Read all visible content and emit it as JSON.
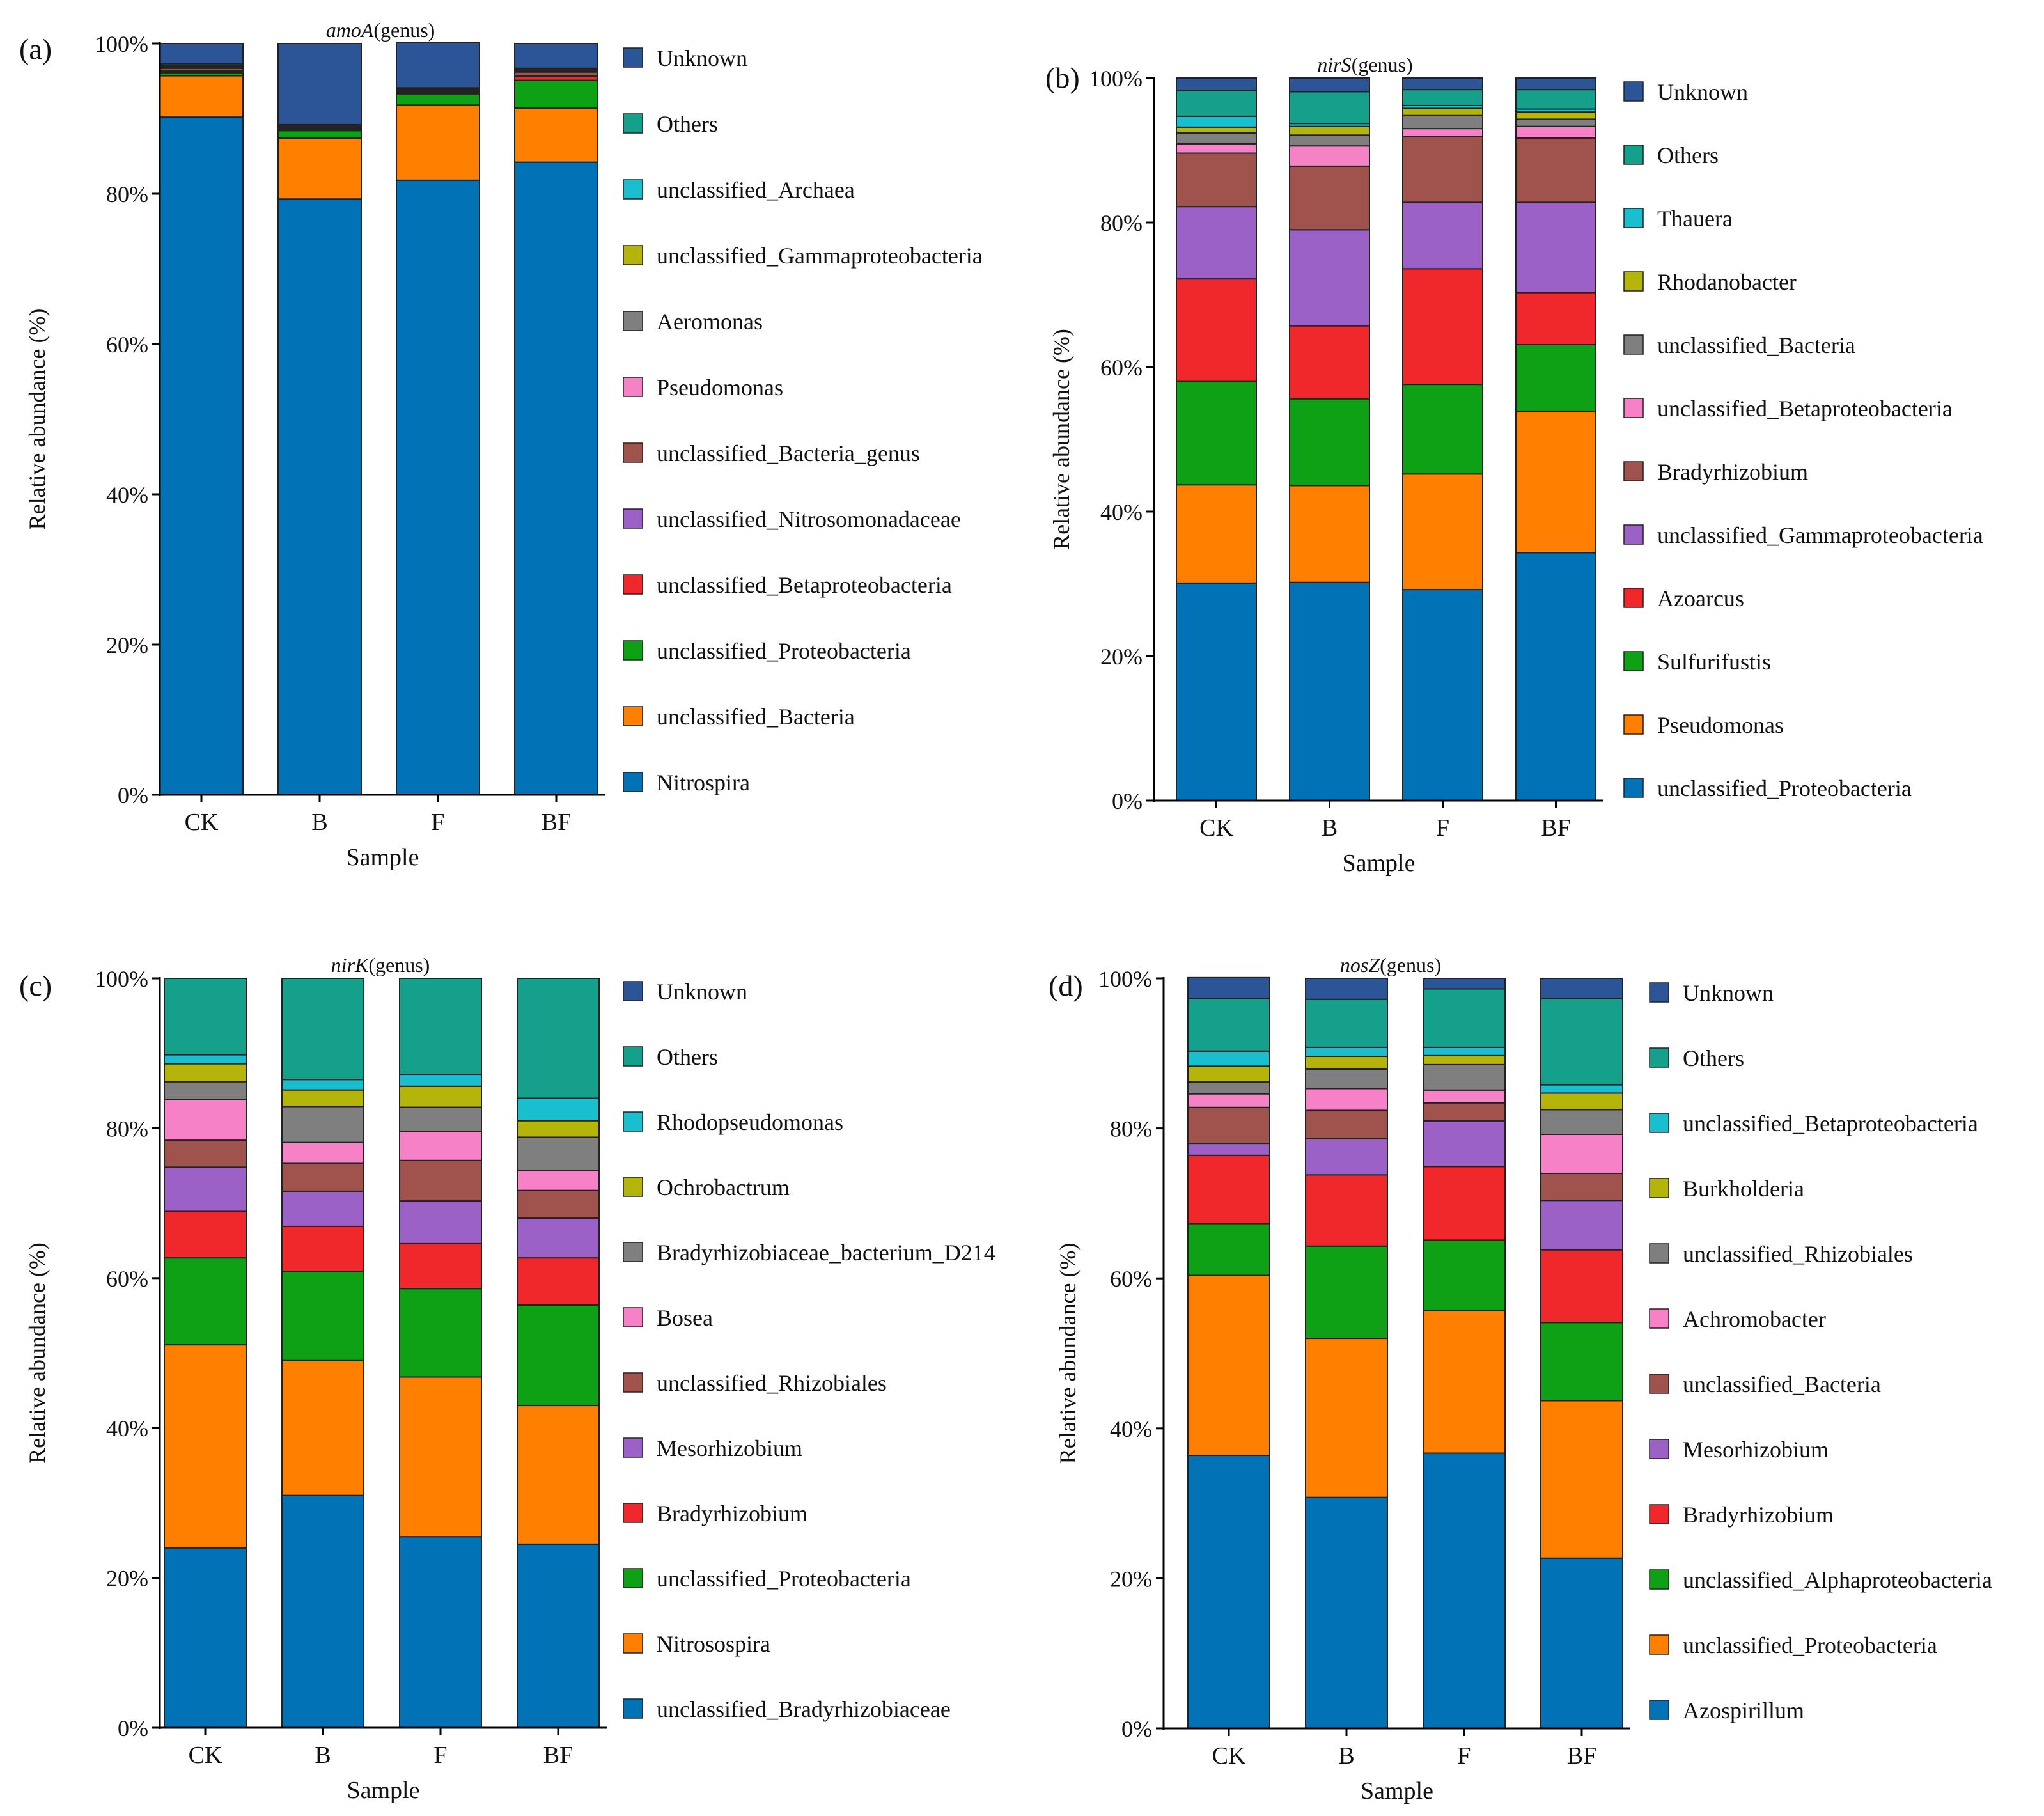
{
  "figure": {
    "xlabel": "Sample",
    "ylabel": "Relative abundance (%)",
    "yticks": [
      "0%",
      "20%",
      "40%",
      "60%",
      "80%",
      "100%"
    ]
  },
  "chart_data": [
    {
      "type": "bar",
      "stacked": true,
      "panel_label": "(a)",
      "title_gene": "amoA",
      "title_suffix": "(genus)",
      "xlabel": "Sample",
      "ylabel": "Relative abundance (%)",
      "ylim": [
        0,
        100
      ],
      "categories": [
        "CK",
        "B",
        "F",
        "BF"
      ],
      "series": [
        {
          "name": "Nitrospira",
          "color": "#0072B5",
          "values": [
            90.2,
            79.3,
            81.8,
            84.2
          ]
        },
        {
          "name": "unclassified_Bacteria",
          "color": "#FF7F00",
          "values": [
            5.5,
            8.1,
            10.0,
            7.2
          ]
        },
        {
          "name": "unclassified_Proteobacteria",
          "color": "#0FA115",
          "values": [
            0.4,
            1.0,
            1.5,
            3.7
          ]
        },
        {
          "name": "unclassified_Betaproteobacteria",
          "color": "#F0282B",
          "values": [
            0.2,
            0.1,
            0.1,
            0.5
          ]
        },
        {
          "name": "unclassified_Nitrosomonadaceae",
          "color": "#9C61C6",
          "values": [
            0.1,
            0.1,
            0.1,
            0.1
          ]
        },
        {
          "name": "unclassified_Bacteria_genus",
          "color": "#A0524C",
          "values": [
            0.3,
            0.1,
            0.1,
            0.5
          ]
        },
        {
          "name": "Pseudomonas",
          "color": "#F781C6",
          "values": [
            0.1,
            0.1,
            0.1,
            0.1
          ]
        },
        {
          "name": "Aeromonas",
          "color": "#7F7F7F",
          "values": [
            0.1,
            0.1,
            0.1,
            0.1
          ]
        },
        {
          "name": "unclassified_Gammaproteobacteria",
          "color": "#B4B40A",
          "values": [
            0.1,
            0.1,
            0.1,
            0.1
          ]
        },
        {
          "name": "unclassified_Archaea",
          "color": "#19BECF",
          "values": [
            0.1,
            0.1,
            0.1,
            0.1
          ]
        },
        {
          "name": "Others",
          "color": "#14A08A",
          "values": [
            0.2,
            0.1,
            0.1,
            0.1
          ]
        },
        {
          "name": "Unknown",
          "color": "#2B5597",
          "values": [
            2.7,
            10.8,
            6.0,
            3.3
          ]
        }
      ]
    },
    {
      "type": "bar",
      "stacked": true,
      "panel_label": "(b)",
      "title_gene": "nirS",
      "title_suffix": "(genus)",
      "xlabel": "Sample",
      "ylabel": "Relative abundance (%)",
      "ylim": [
        0,
        100
      ],
      "categories": [
        "CK",
        "B",
        "F",
        "BF"
      ],
      "series": [
        {
          "name": "unclassified_Proteobacteria",
          "color": "#0072B5",
          "values": [
            30.1,
            30.2,
            29.2,
            34.3
          ]
        },
        {
          "name": "Pseudomonas",
          "color": "#FF7F00",
          "values": [
            13.6,
            13.4,
            16.0,
            19.6
          ]
        },
        {
          "name": "Sulfurifustis",
          "color": "#0FA115",
          "values": [
            14.3,
            12.0,
            12.4,
            9.2
          ]
        },
        {
          "name": "Azoarcus",
          "color": "#F0282B",
          "values": [
            14.2,
            10.1,
            16.0,
            7.2
          ]
        },
        {
          "name": "unclassified_Gammaproteobacteria",
          "color": "#9C61C6",
          "values": [
            10.0,
            13.3,
            9.2,
            12.5
          ]
        },
        {
          "name": "Bradyrhizobium",
          "color": "#A0524C",
          "values": [
            7.4,
            8.8,
            9.1,
            8.9
          ]
        },
        {
          "name": "unclassified_Betaproteobacteria",
          "color": "#F781C6",
          "values": [
            1.3,
            2.8,
            1.1,
            1.6
          ]
        },
        {
          "name": "unclassified_Bacteria",
          "color": "#7F7F7F",
          "values": [
            1.5,
            1.5,
            1.8,
            1.0
          ]
        },
        {
          "name": "Rhodanobacter",
          "color": "#B4B40A",
          "values": [
            0.8,
            1.2,
            1.0,
            1.0
          ]
        },
        {
          "name": "Thauera",
          "color": "#19BECF",
          "values": [
            1.5,
            0.4,
            0.4,
            0.4
          ]
        },
        {
          "name": "Others",
          "color": "#14A08A",
          "values": [
            3.6,
            4.4,
            2.2,
            2.7
          ]
        },
        {
          "name": "Unknown",
          "color": "#2B5597",
          "values": [
            1.7,
            1.9,
            1.6,
            1.6
          ]
        }
      ]
    },
    {
      "type": "bar",
      "stacked": true,
      "panel_label": "(c)",
      "title_gene": "nirK",
      "title_suffix": "(genus)",
      "xlabel": "Sample",
      "ylabel": "Relative abundance (%)",
      "ylim": [
        0,
        100
      ],
      "categories": [
        "CK",
        "B",
        "F",
        "BF"
      ],
      "series": [
        {
          "name": "unclassified_Bradyrhizobiaceae",
          "color": "#0072B5",
          "values": [
            24.0,
            31.0,
            25.5,
            24.5
          ]
        },
        {
          "name": "Nitrosospira",
          "color": "#FF7F00",
          "values": [
            27.1,
            18.0,
            21.3,
            18.5
          ]
        },
        {
          "name": "unclassified_Proteobacteria",
          "color": "#0FA115",
          "values": [
            11.6,
            11.9,
            11.8,
            13.4
          ]
        },
        {
          "name": "Bradyrhizobium",
          "color": "#F0282B",
          "values": [
            6.2,
            6.0,
            6.0,
            6.3
          ]
        },
        {
          "name": "Mesorhizobium",
          "color": "#9C61C6",
          "values": [
            5.9,
            4.7,
            5.7,
            5.3
          ]
        },
        {
          "name": "unclassified_Rhizobiales",
          "color": "#A0524C",
          "values": [
            3.6,
            3.7,
            5.4,
            3.7
          ]
        },
        {
          "name": "Bosea",
          "color": "#F781C6",
          "values": [
            5.4,
            2.8,
            3.9,
            2.7
          ]
        },
        {
          "name": "Bradyrhizobiaceae_bacterium_D214",
          "color": "#7F7F7F",
          "values": [
            2.4,
            4.8,
            3.2,
            4.4
          ]
        },
        {
          "name": "Ochrobactrum",
          "color": "#B4B40A",
          "values": [
            2.4,
            2.2,
            2.8,
            2.2
          ]
        },
        {
          "name": "Rhodopseudomonas",
          "color": "#19BECF",
          "values": [
            1.2,
            1.4,
            1.6,
            3.0
          ]
        },
        {
          "name": "Others",
          "color": "#14A08A",
          "values": [
            10.2,
            13.5,
            12.8,
            16.0
          ]
        },
        {
          "name": "Unknown",
          "color": "#2B5597",
          "values": [
            0.0,
            0.0,
            0.0,
            0.0
          ]
        }
      ]
    },
    {
      "type": "bar",
      "stacked": true,
      "panel_label": "(d)",
      "title_gene": "nosZ",
      "title_suffix": "(genus)",
      "xlabel": "Sample",
      "ylabel": "Relative abundance (%)",
      "ylim": [
        0,
        100
      ],
      "categories": [
        "CK",
        "B",
        "F",
        "BF"
      ],
      "series": [
        {
          "name": "Azospirillum",
          "color": "#0072B5",
          "values": [
            36.4,
            30.8,
            36.7,
            22.7
          ]
        },
        {
          "name": "unclassified_Proteobacteria",
          "color": "#FF7F00",
          "values": [
            24.0,
            21.2,
            19.0,
            21.0
          ]
        },
        {
          "name": "unclassified_Alphaproteobacteria",
          "color": "#0FA115",
          "values": [
            6.9,
            12.3,
            9.4,
            10.4
          ]
        },
        {
          "name": "Bradyrhizobium",
          "color": "#F0282B",
          "values": [
            9.1,
            9.5,
            9.8,
            9.7
          ]
        },
        {
          "name": "Mesorhizobium",
          "color": "#9C61C6",
          "values": [
            1.6,
            4.8,
            6.1,
            6.6
          ]
        },
        {
          "name": "unclassified_Bacteria",
          "color": "#A0524C",
          "values": [
            4.8,
            3.8,
            2.4,
            3.6
          ]
        },
        {
          "name": "Achromobacter",
          "color": "#F781C6",
          "values": [
            1.8,
            2.9,
            1.7,
            5.2
          ]
        },
        {
          "name": "unclassified_Rhizobiales",
          "color": "#7F7F7F",
          "values": [
            1.6,
            2.6,
            3.4,
            3.3
          ]
        },
        {
          "name": "Burkholderia",
          "color": "#B4B40A",
          "values": [
            2.1,
            1.7,
            1.2,
            2.2
          ]
        },
        {
          "name": "unclassified_Betaproteobacteria",
          "color": "#19BECF",
          "values": [
            2.0,
            1.2,
            1.1,
            1.1
          ]
        },
        {
          "name": "Others",
          "color": "#14A08A",
          "values": [
            7.0,
            6.4,
            7.8,
            11.5
          ]
        },
        {
          "name": "Unknown",
          "color": "#2B5597",
          "values": [
            2.8,
            2.8,
            1.4,
            2.7
          ]
        }
      ]
    }
  ]
}
